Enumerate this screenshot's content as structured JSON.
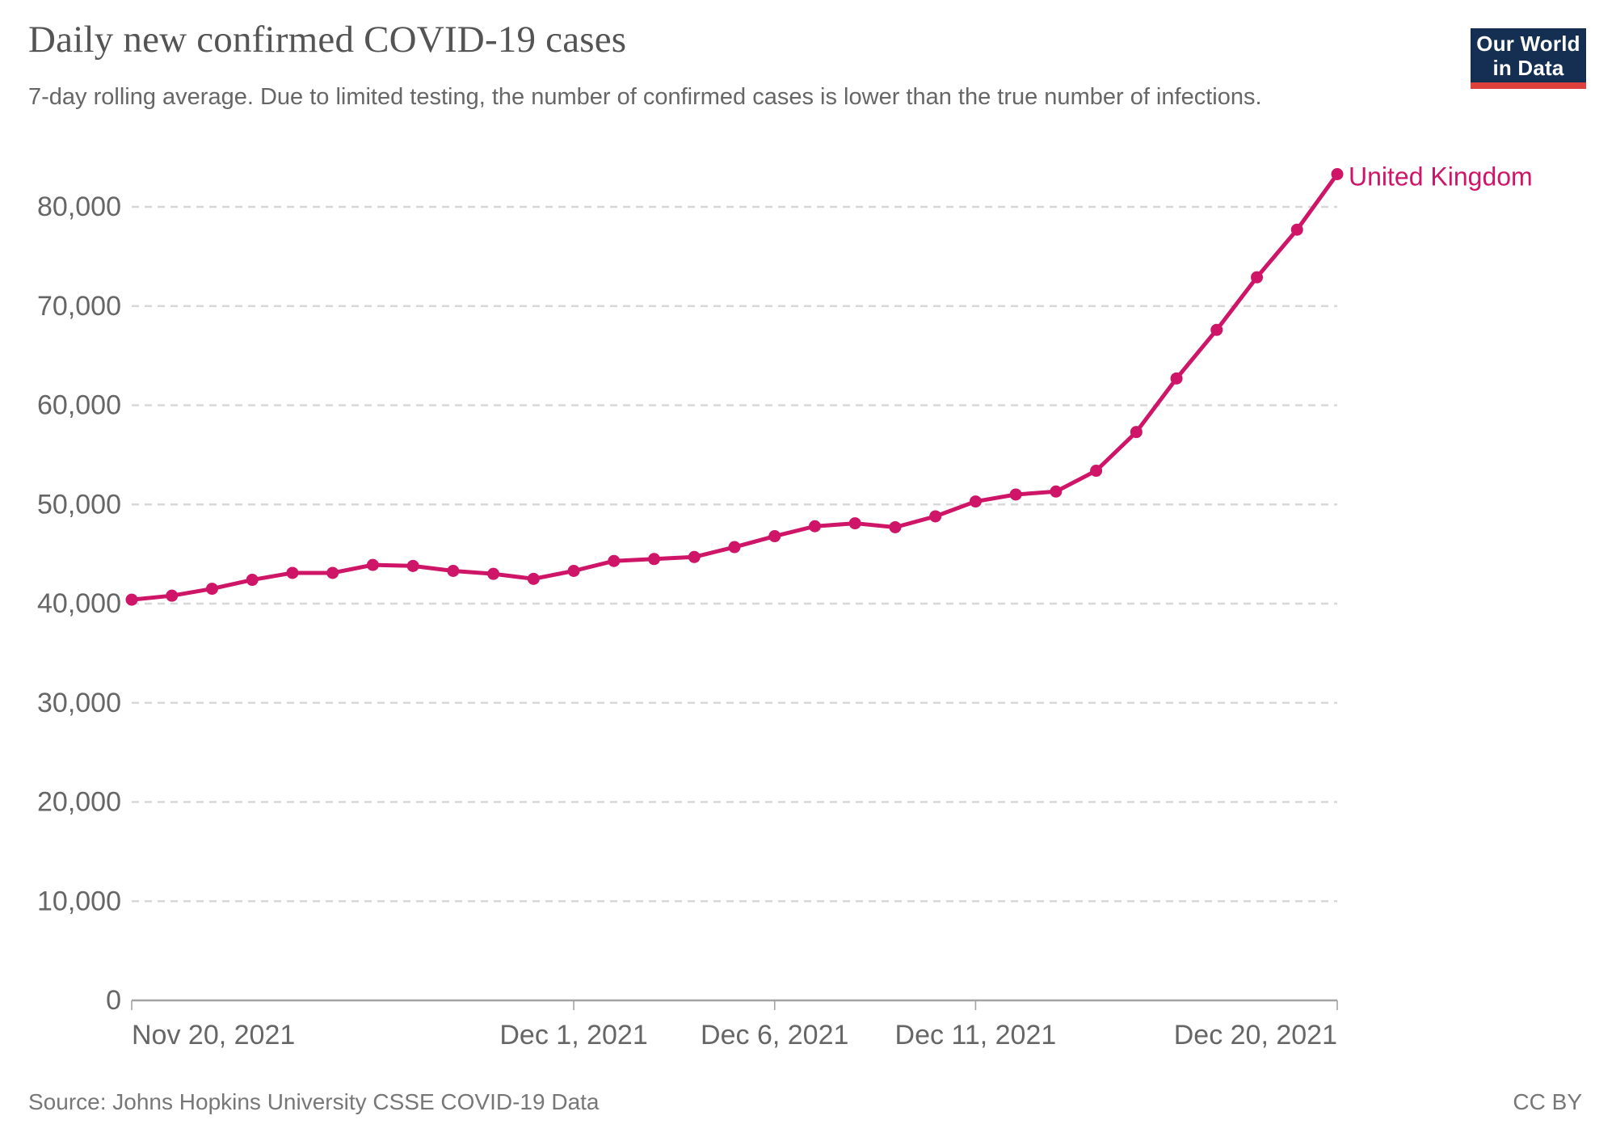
{
  "header": {
    "title": "Daily new confirmed COVID-19 cases",
    "subtitle": "7-day rolling average. Due to limited testing, the number of confirmed cases is lower than the true number of infections."
  },
  "logo": {
    "line1": "Our World",
    "line2": "in Data"
  },
  "footer": {
    "source": "Source: Johns Hopkins University CSSE COVID-19 Data",
    "license": "CC BY"
  },
  "chart_data": {
    "type": "line",
    "title": "Daily new confirmed COVID-19 cases",
    "subtitle": "7-day rolling average. Due to limited testing, the number of confirmed cases is lower than the true number of infections.",
    "xlabel": "",
    "ylabel": "",
    "ylim": [
      0,
      80000
    ],
    "y_ticks": [
      0,
      10000,
      20000,
      30000,
      40000,
      50000,
      60000,
      70000,
      80000
    ],
    "grid": "horizontal-dashed",
    "legend_position": "end-of-line-label",
    "x": [
      "Nov 20, 2021",
      "Nov 21, 2021",
      "Nov 22, 2021",
      "Nov 23, 2021",
      "Nov 24, 2021",
      "Nov 25, 2021",
      "Nov 26, 2021",
      "Nov 27, 2021",
      "Nov 28, 2021",
      "Nov 29, 2021",
      "Nov 30, 2021",
      "Dec 1, 2021",
      "Dec 2, 2021",
      "Dec 3, 2021",
      "Dec 4, 2021",
      "Dec 5, 2021",
      "Dec 6, 2021",
      "Dec 7, 2021",
      "Dec 8, 2021",
      "Dec 9, 2021",
      "Dec 10, 2021",
      "Dec 11, 2021",
      "Dec 12, 2021",
      "Dec 13, 2021",
      "Dec 14, 2021",
      "Dec 15, 2021",
      "Dec 16, 2021",
      "Dec 17, 2021",
      "Dec 18, 2021",
      "Dec 19, 2021",
      "Dec 20, 2021"
    ],
    "series": [
      {
        "name": "United Kingdom",
        "color": "#CE1567",
        "values": [
          40400,
          40800,
          41500,
          42400,
          43100,
          43100,
          43900,
          43800,
          43300,
          43000,
          42500,
          43300,
          44300,
          44500,
          44700,
          45700,
          46800,
          47800,
          48100,
          47700,
          48800,
          50300,
          51000,
          51300,
          53400,
          57300,
          62700,
          67600,
          72900,
          77700,
          83300
        ]
      }
    ],
    "x_ticks": [
      {
        "label": "Nov 20, 2021",
        "day": 0,
        "anchor": "start"
      },
      {
        "label": "Dec 1, 2021",
        "day": 11,
        "anchor": "middle"
      },
      {
        "label": "Dec 6, 2021",
        "day": 16,
        "anchor": "middle"
      },
      {
        "label": "Dec 11, 2021",
        "day": 21,
        "anchor": "middle"
      },
      {
        "label": "Dec 20, 2021",
        "day": 30,
        "anchor": "end"
      }
    ],
    "colors": {
      "gridline": "#d8d8d8",
      "axis": "#a3a3a3",
      "tick_label": "#666666"
    }
  }
}
